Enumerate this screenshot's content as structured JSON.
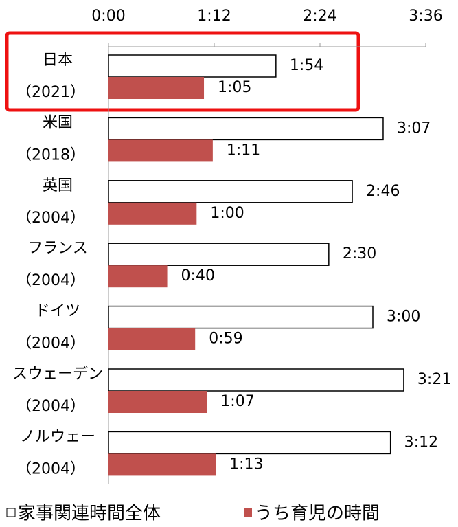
{
  "chart_data": {
    "type": "bar",
    "orientation": "horizontal",
    "categories": [
      "日本",
      "米国",
      "英国",
      "フランス",
      "ドイツ",
      "スウェーデン",
      "ノルウェー"
    ],
    "category_notes": [
      "（2021）",
      "（2018）",
      "（2004）",
      "（2004）",
      "（2004）",
      "（2004）",
      "（2004）"
    ],
    "series": [
      {
        "name": "家事関連時間全体",
        "color": "#ffffff",
        "values": [
          114,
          187,
          166,
          150,
          180,
          201,
          192
        ],
        "value_labels": [
          "1:54",
          "3:07",
          "2:46",
          "2:30",
          "3:00",
          "3:21",
          "3:12"
        ]
      },
      {
        "name": "うち育児の時間",
        "color": "#c0504d",
        "values": [
          65,
          71,
          60,
          40,
          59,
          67,
          73
        ],
        "value_labels": [
          "1:05",
          "1:11",
          "1:00",
          "0:40",
          "0:59",
          "1:07",
          "1:13"
        ]
      }
    ],
    "xlim": [
      0,
      216
    ],
    "xticks": [
      {
        "value": 0,
        "label": "0:00"
      },
      {
        "value": 72,
        "label": "1:12"
      },
      {
        "value": 144,
        "label": "2:24"
      },
      {
        "value": 216,
        "label": "3:36"
      }
    ],
    "highlight_color": "#ee1111"
  }
}
